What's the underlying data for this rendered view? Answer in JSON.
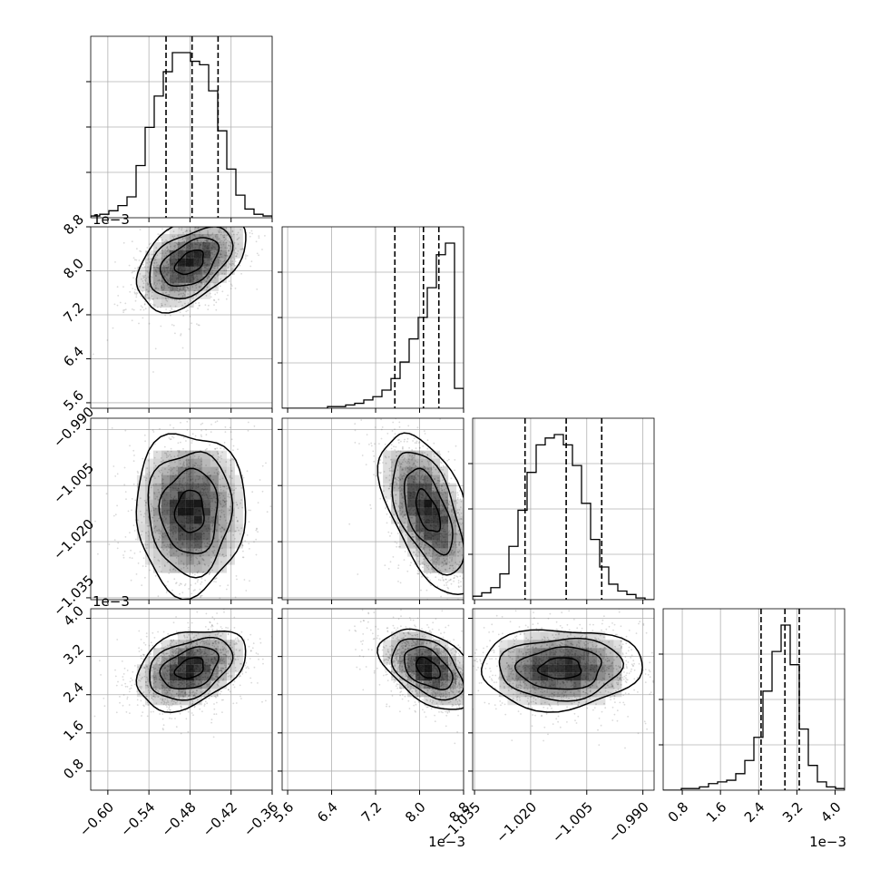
{
  "chart_data": {
    "type": "corner",
    "colors": {
      "axes": "#000000",
      "grid": "#b0b0b0",
      "scatter": "#555555",
      "density": "#000000"
    },
    "grid": true,
    "parameters": [
      {
        "name": "",
        "range": [
          -0.625,
          -0.36
        ],
        "ticks": [
          -0.6,
          -0.54,
          -0.48,
          -0.42,
          -0.36
        ],
        "tick_labels": [
          "−0.60",
          "−0.54",
          "−0.48",
          "−0.42",
          "−0.36"
        ],
        "offset_label": "",
        "quantiles": [
          -0.515,
          -0.477,
          -0.439
        ],
        "hist": [
          1,
          2,
          4,
          7,
          12,
          30,
          52,
          70,
          84,
          95,
          95,
          90,
          88,
          73,
          50,
          28,
          13,
          5,
          2,
          1
        ],
        "mode": -0.48
      },
      {
        "name": "",
        "range": [
          5.5,
          8.8
        ],
        "ticks": [
          5.6,
          6.4,
          7.2,
          8.0,
          8.8
        ],
        "tick_labels": [
          "5.6",
          "6.4",
          "7.2",
          "8.0",
          "8.8"
        ],
        "offset_label": "1e−3",
        "quantiles": [
          7.55,
          8.07,
          8.35
        ],
        "hist": [
          0,
          0,
          0,
          0,
          0,
          1,
          1,
          2,
          3,
          5,
          7,
          11,
          18,
          28,
          42,
          55,
          73,
          93,
          100,
          12
        ],
        "mode": 8.15
      },
      {
        "name": "",
        "range": [
          -1.0355,
          -0.987
        ],
        "ticks": [
          -1.035,
          -1.02,
          -1.005,
          -0.99
        ],
        "tick_labels": [
          "−1.035",
          "−1.020",
          "−1.005",
          "−0.990"
        ],
        "offset_label": "",
        "quantiles": [
          -1.0215,
          -1.0105,
          -1.001
        ],
        "hist": [
          2,
          4,
          7,
          15,
          31,
          52,
          74,
          90,
          94,
          96,
          90,
          78,
          56,
          35,
          19,
          9,
          5,
          3,
          1,
          0
        ],
        "mode": -1.012
      },
      {
        "name": "",
        "range": [
          0.4,
          4.2
        ],
        "ticks": [
          0.8,
          1.6,
          2.4,
          3.2,
          4.0
        ],
        "tick_labels": [
          "0.8",
          "1.6",
          "2.4",
          "3.2",
          "4.0"
        ],
        "offset_label": "1e−3",
        "quantiles": [
          2.45,
          2.95,
          3.25
        ],
        "hist": [
          0,
          0,
          1,
          1,
          2,
          4,
          5,
          6,
          10,
          18,
          32,
          60,
          84,
          100,
          76,
          37,
          15,
          5,
          2,
          1
        ],
        "mode": 2.95
      }
    ],
    "correlations": {
      "1-0": 0.45,
      "2-0": 0.0,
      "2-1": -0.55,
      "3-0": 0.35,
      "3-1": -0.45,
      "3-2": 0.05
    }
  }
}
